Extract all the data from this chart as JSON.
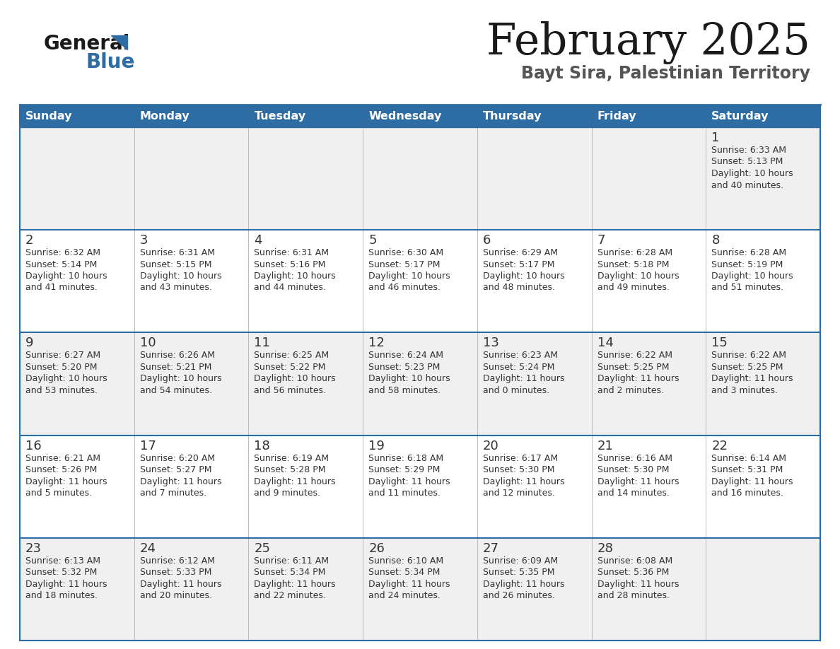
{
  "title": "February 2025",
  "subtitle": "Bayt Sira, Palestinian Territory",
  "header_color": "#2E6DA4",
  "header_text_color": "#FFFFFF",
  "cell_bg_row0": "#F0F0F0",
  "cell_bg_row1": "#FFFFFF",
  "border_color": "#2E6DA4",
  "text_color": "#333333",
  "day_headers": [
    "Sunday",
    "Monday",
    "Tuesday",
    "Wednesday",
    "Thursday",
    "Friday",
    "Saturday"
  ],
  "calendar_data": [
    [
      {
        "day": null
      },
      {
        "day": null
      },
      {
        "day": null
      },
      {
        "day": null
      },
      {
        "day": null
      },
      {
        "day": null
      },
      {
        "day": 1,
        "sunrise": "6:33 AM",
        "sunset": "5:13 PM",
        "daylight": "10 hours",
        "daylight2": "and 40 minutes."
      }
    ],
    [
      {
        "day": 2,
        "sunrise": "6:32 AM",
        "sunset": "5:14 PM",
        "daylight": "10 hours",
        "daylight2": "and 41 minutes."
      },
      {
        "day": 3,
        "sunrise": "6:31 AM",
        "sunset": "5:15 PM",
        "daylight": "10 hours",
        "daylight2": "and 43 minutes."
      },
      {
        "day": 4,
        "sunrise": "6:31 AM",
        "sunset": "5:16 PM",
        "daylight": "10 hours",
        "daylight2": "and 44 minutes."
      },
      {
        "day": 5,
        "sunrise": "6:30 AM",
        "sunset": "5:17 PM",
        "daylight": "10 hours",
        "daylight2": "and 46 minutes."
      },
      {
        "day": 6,
        "sunrise": "6:29 AM",
        "sunset": "5:17 PM",
        "daylight": "10 hours",
        "daylight2": "and 48 minutes."
      },
      {
        "day": 7,
        "sunrise": "6:28 AM",
        "sunset": "5:18 PM",
        "daylight": "10 hours",
        "daylight2": "and 49 minutes."
      },
      {
        "day": 8,
        "sunrise": "6:28 AM",
        "sunset": "5:19 PM",
        "daylight": "10 hours",
        "daylight2": "and 51 minutes."
      }
    ],
    [
      {
        "day": 9,
        "sunrise": "6:27 AM",
        "sunset": "5:20 PM",
        "daylight": "10 hours",
        "daylight2": "and 53 minutes."
      },
      {
        "day": 10,
        "sunrise": "6:26 AM",
        "sunset": "5:21 PM",
        "daylight": "10 hours",
        "daylight2": "and 54 minutes."
      },
      {
        "day": 11,
        "sunrise": "6:25 AM",
        "sunset": "5:22 PM",
        "daylight": "10 hours",
        "daylight2": "and 56 minutes."
      },
      {
        "day": 12,
        "sunrise": "6:24 AM",
        "sunset": "5:23 PM",
        "daylight": "10 hours",
        "daylight2": "and 58 minutes."
      },
      {
        "day": 13,
        "sunrise": "6:23 AM",
        "sunset": "5:24 PM",
        "daylight": "11 hours",
        "daylight2": "and 0 minutes."
      },
      {
        "day": 14,
        "sunrise": "6:22 AM",
        "sunset": "5:25 PM",
        "daylight": "11 hours",
        "daylight2": "and 2 minutes."
      },
      {
        "day": 15,
        "sunrise": "6:22 AM",
        "sunset": "5:25 PM",
        "daylight": "11 hours",
        "daylight2": "and 3 minutes."
      }
    ],
    [
      {
        "day": 16,
        "sunrise": "6:21 AM",
        "sunset": "5:26 PM",
        "daylight": "11 hours",
        "daylight2": "and 5 minutes."
      },
      {
        "day": 17,
        "sunrise": "6:20 AM",
        "sunset": "5:27 PM",
        "daylight": "11 hours",
        "daylight2": "and 7 minutes."
      },
      {
        "day": 18,
        "sunrise": "6:19 AM",
        "sunset": "5:28 PM",
        "daylight": "11 hours",
        "daylight2": "and 9 minutes."
      },
      {
        "day": 19,
        "sunrise": "6:18 AM",
        "sunset": "5:29 PM",
        "daylight": "11 hours",
        "daylight2": "and 11 minutes."
      },
      {
        "day": 20,
        "sunrise": "6:17 AM",
        "sunset": "5:30 PM",
        "daylight": "11 hours",
        "daylight2": "and 12 minutes."
      },
      {
        "day": 21,
        "sunrise": "6:16 AM",
        "sunset": "5:30 PM",
        "daylight": "11 hours",
        "daylight2": "and 14 minutes."
      },
      {
        "day": 22,
        "sunrise": "6:14 AM",
        "sunset": "5:31 PM",
        "daylight": "11 hours",
        "daylight2": "and 16 minutes."
      }
    ],
    [
      {
        "day": 23,
        "sunrise": "6:13 AM",
        "sunset": "5:32 PM",
        "daylight": "11 hours",
        "daylight2": "and 18 minutes."
      },
      {
        "day": 24,
        "sunrise": "6:12 AM",
        "sunset": "5:33 PM",
        "daylight": "11 hours",
        "daylight2": "and 20 minutes."
      },
      {
        "day": 25,
        "sunrise": "6:11 AM",
        "sunset": "5:34 PM",
        "daylight": "11 hours",
        "daylight2": "and 22 minutes."
      },
      {
        "day": 26,
        "sunrise": "6:10 AM",
        "sunset": "5:34 PM",
        "daylight": "11 hours",
        "daylight2": "and 24 minutes."
      },
      {
        "day": 27,
        "sunrise": "6:09 AM",
        "sunset": "5:35 PM",
        "daylight": "11 hours",
        "daylight2": "and 26 minutes."
      },
      {
        "day": 28,
        "sunrise": "6:08 AM",
        "sunset": "5:36 PM",
        "daylight": "11 hours",
        "daylight2": "and 28 minutes."
      },
      {
        "day": null
      }
    ]
  ]
}
